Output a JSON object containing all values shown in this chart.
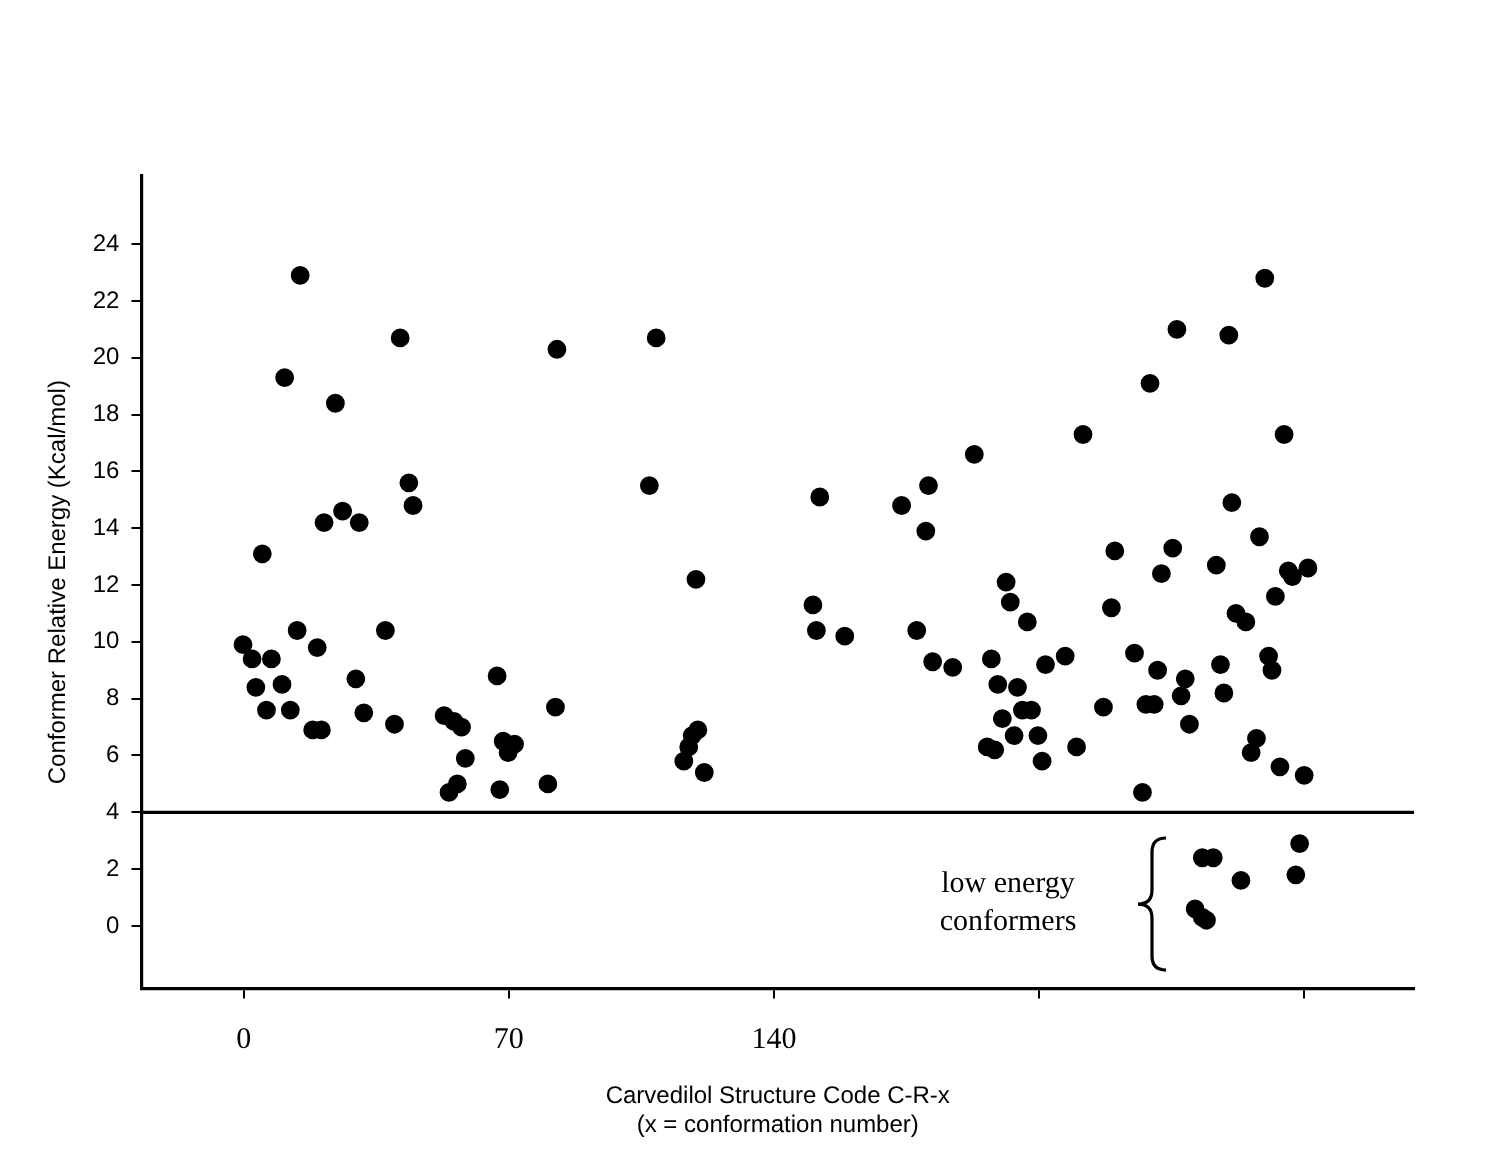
{
  "chart_data": {
    "type": "scatter",
    "xlabel": "Carvedilol Structure Code C-R-x\n(x = conformation number)",
    "ylabel": "Conformer Relative Energy (Kcal/mol)",
    "annotations": [
      "low energy conformers"
    ],
    "xlim": [
      -27,
      309
    ],
    "xticks": [
      0,
      70,
      140,
      {
        "value": 210,
        "label": null
      },
      {
        "value": 280,
        "label": null
      }
    ],
    "ylim": [
      -2.2,
      26.4
    ],
    "yticks": [
      0,
      2,
      4,
      6,
      8,
      10,
      12,
      14,
      16,
      18,
      20,
      22,
      24
    ],
    "grid": false,
    "legend": false,
    "marker": "circle",
    "ref_lines": [
      {
        "axis": "y",
        "value": 4,
        "color": "#000000"
      }
    ],
    "series": [
      {
        "color": "#000000",
        "x": [
          14.9,
          41.3,
          82.7,
          10.8,
          24.2,
          43.6,
          44.7,
          21.2,
          26.1,
          30.5,
          4.9,
          -0.2,
          2.2,
          7.3,
          14.1,
          19.4,
          37.4,
          3.2,
          10.1,
          29.6,
          6.0,
          12.3,
          31.7,
          18.2,
          20.5,
          39.8,
          52.9,
          55.5,
          57.5,
          66.9,
          82.3,
          58.5,
          68.5,
          71.5,
          69.8,
          54.2,
          56.4,
          67.6,
          80.3,
          108.9,
          107.1,
          119.4,
          119.9,
          118.4,
          117.5,
          116.2,
          121.6,
          152.1,
          150.3,
          151.2,
          158.7,
          192.9,
          180.8,
          173.7,
          180.1,
          177.7,
          181.9,
          187.2,
          197.4,
          199.1,
          200.3,
          196.3,
          198.3,
          269.6,
          246.4,
          260.1,
          239.3,
          221.6,
          274.7,
          260.9,
          268.2,
          230,
          245.3,
          242.3,
          256.8,
          275.8,
          276.9,
          281,
          272.4,
          229.1,
          201.3,
          202.4,
          206.9,
          262,
          264.6,
          211.7,
          216.9,
          235.2,
          241.3,
          270.6,
          271.5,
          257.9,
          248.6,
          204.3,
          205.6,
          208,
          227,
          238.2,
          240.4,
          247.5,
          258.8,
          203.4,
          209.7,
          210.8,
          219.9,
          249.7,
          267.4,
          266,
          273.6,
          280,
          237.3,
          253.1,
          256,
          263.3,
          278.8,
          277.8,
          251.2,
          253.1,
          254.2
        ],
        "values": [
          22.9,
          20.7,
          20.3,
          19.3,
          18.4,
          15.6,
          14.8,
          14.2,
          14.6,
          14.2,
          13.1,
          9.9,
          9.4,
          9.4,
          10.4,
          9.8,
          10.4,
          8.4,
          8.5,
          8.7,
          7.6,
          7.6,
          7.5,
          6.9,
          6.9,
          7.1,
          7.4,
          7.2,
          7.0,
          8.8,
          7.7,
          5.9,
          6.5,
          6.4,
          6.1,
          4.7,
          5.0,
          4.8,
          5.0,
          20.7,
          15.5,
          12.2,
          6.9,
          6.7,
          6.3,
          5.8,
          5.4,
          15.1,
          11.3,
          10.4,
          10.2,
          16.6,
          15.5,
          14.8,
          13.9,
          10.4,
          9.3,
          9.1,
          9.4,
          8.5,
          7.3,
          6.3,
          6.2,
          22.8,
          21.0,
          20.8,
          19.1,
          17.3,
          17.3,
          14.9,
          13.7,
          13.2,
          13.3,
          12.4,
          12.7,
          12.5,
          12.3,
          12.6,
          11.6,
          11.2,
          12.1,
          11.4,
          10.7,
          11.0,
          10.7,
          9.2,
          9.5,
          9.6,
          9.0,
          9.5,
          9.0,
          9.2,
          8.7,
          8.4,
          7.6,
          7.6,
          7.7,
          7.8,
          7.8,
          8.1,
          8.2,
          6.7,
          6.7,
          5.8,
          6.3,
          7.1,
          6.6,
          6.1,
          5.6,
          5.3,
          4.7,
          2.4,
          2.4,
          1.6,
          2.9,
          1.8,
          0.6,
          0.3,
          0.2
        ]
      }
    ]
  }
}
